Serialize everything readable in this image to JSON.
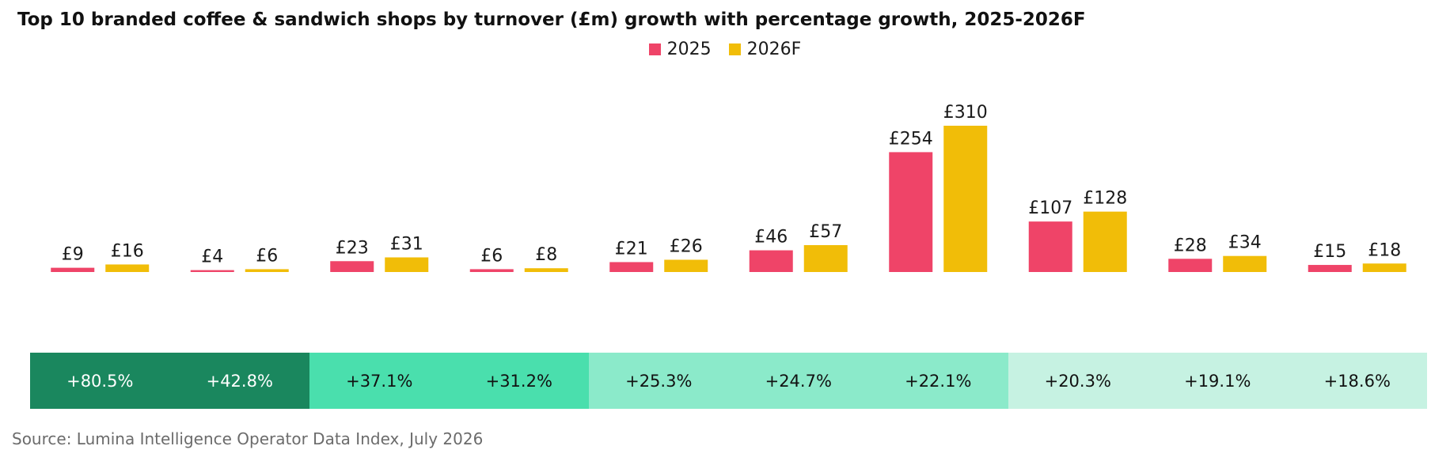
{
  "colors": {
    "series_2025": "#ef4468",
    "series_2026F": "#f1bd08",
    "growth_tier_1": "#1a875e",
    "growth_tier_2": "#4adfad",
    "growth_tier_3": "#8beaca",
    "growth_tier_4": "#c6f2e2"
  },
  "chart_data": {
    "type": "bar",
    "title": "Top 10 branded coffee & sandwich shops by turnover (£m) growth with percentage growth, 2025-2026F",
    "ylabel": "",
    "xlabel": "",
    "categories": [
      "",
      "",
      "",
      "",
      "",
      "",
      "",
      "",
      "",
      ""
    ],
    "ylim": [
      0,
      310
    ],
    "legend_position": "top-center",
    "series": [
      {
        "name": "2025",
        "values": [
          9,
          4,
          23,
          6,
          21,
          46,
          254,
          107,
          28,
          15
        ],
        "labels": [
          "£9",
          "£4",
          "£23",
          "£6",
          "£21",
          "£46",
          "£254",
          "£107",
          "£28",
          "£15"
        ]
      },
      {
        "name": "2026F",
        "values": [
          16,
          6,
          31,
          8,
          26,
          57,
          310,
          128,
          34,
          18
        ],
        "labels": [
          "£16",
          "£6",
          "£31",
          "£8",
          "£26",
          "£57",
          "£310",
          "£128",
          "£34",
          "£18"
        ]
      }
    ],
    "growth": [
      {
        "label": "+80.5%",
        "value": 80.5,
        "tier": 1
      },
      {
        "label": "+42.8%",
        "value": 42.8,
        "tier": 1
      },
      {
        "label": "+37.1%",
        "value": 37.1,
        "tier": 2
      },
      {
        "label": "+31.2%",
        "value": 31.2,
        "tier": 2
      },
      {
        "label": "+25.3%",
        "value": 25.3,
        "tier": 3
      },
      {
        "label": "+24.7%",
        "value": 24.7,
        "tier": 3
      },
      {
        "label": "+22.1%",
        "value": 22.1,
        "tier": 3
      },
      {
        "label": "+20.3%",
        "value": 20.3,
        "tier": 4
      },
      {
        "label": "+19.1%",
        "value": 19.1,
        "tier": 4
      },
      {
        "label": "+18.6%",
        "value": 18.6,
        "tier": 4
      }
    ]
  },
  "source": "Source: Lumina Intelligence Operator Data Index, July 2026"
}
